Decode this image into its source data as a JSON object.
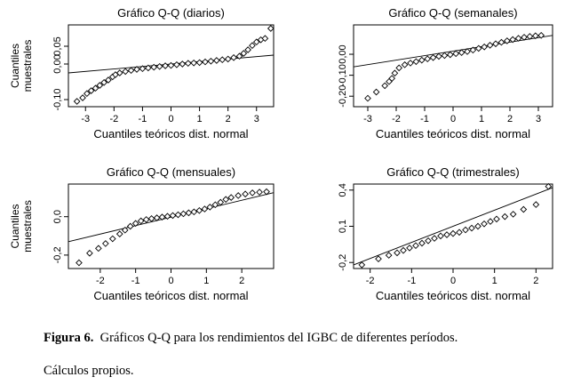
{
  "chart_data": [
    {
      "type": "scatter",
      "title": "Gráfico Q-Q (diarios)",
      "xlabel": "Cuantiles teóricos dist. normal",
      "ylabel": "Cuantiles muestrales",
      "xlim": [
        -3.6,
        3.6
      ],
      "ylim": [
        -0.12,
        0.11
      ],
      "xticks": [
        -3,
        -2,
        -1,
        0,
        1,
        2,
        3
      ],
      "xtick_labels": [
        "-3",
        "-2",
        "-1",
        "0",
        "1",
        "2",
        "3"
      ],
      "yticks": [
        -0.1,
        0,
        0.05
      ],
      "ytick_labels": [
        "-0,10",
        "0,00",
        "0,05"
      ],
      "reference_line": {
        "x": [
          -3.6,
          3.6
        ],
        "y": [
          -0.025,
          0.025
        ]
      },
      "points": [
        [
          -3.3,
          -0.105
        ],
        [
          -3.1,
          -0.095
        ],
        [
          -2.95,
          -0.083
        ],
        [
          -2.8,
          -0.075
        ],
        [
          -2.65,
          -0.068
        ],
        [
          -2.5,
          -0.06
        ],
        [
          -2.35,
          -0.052
        ],
        [
          -2.2,
          -0.045
        ],
        [
          -2.05,
          -0.036
        ],
        [
          -1.95,
          -0.03
        ],
        [
          -1.8,
          -0.025
        ],
        [
          -1.6,
          -0.021
        ],
        [
          -1.4,
          -0.018
        ],
        [
          -1.2,
          -0.015
        ],
        [
          -1.0,
          -0.013
        ],
        [
          -0.8,
          -0.011
        ],
        [
          -0.6,
          -0.009
        ],
        [
          -0.4,
          -0.007
        ],
        [
          -0.2,
          -0.005
        ],
        [
          0.0,
          -0.004
        ],
        [
          0.2,
          -0.002
        ],
        [
          0.4,
          0.0
        ],
        [
          0.6,
          0.002
        ],
        [
          0.8,
          0.003
        ],
        [
          1.0,
          0.004
        ],
        [
          1.2,
          0.006
        ],
        [
          1.4,
          0.008
        ],
        [
          1.6,
          0.01
        ],
        [
          1.8,
          0.012
        ],
        [
          2.0,
          0.014
        ],
        [
          2.2,
          0.018
        ],
        [
          2.4,
          0.022
        ],
        [
          2.55,
          0.03
        ],
        [
          2.7,
          0.04
        ],
        [
          2.85,
          0.052
        ],
        [
          3.0,
          0.062
        ],
        [
          3.15,
          0.068
        ],
        [
          3.3,
          0.072
        ],
        [
          3.5,
          0.1
        ]
      ]
    },
    {
      "type": "scatter",
      "title": "Gráfico Q-Q (semanales)",
      "xlabel": "Cuantiles teóricos dist. normal",
      "ylabel": "",
      "xlim": [
        -3.5,
        3.5
      ],
      "ylim": [
        -0.25,
        0.14
      ],
      "xticks": [
        -3,
        -2,
        -1,
        0,
        1,
        2,
        3
      ],
      "xtick_labels": [
        "-3",
        "-2",
        "-1",
        "0",
        "1",
        "2",
        "3"
      ],
      "yticks": [
        -0.2,
        -0.1,
        0
      ],
      "ytick_labels": [
        "-0,20",
        "-0,10",
        "0,00"
      ],
      "reference_line": {
        "x": [
          -3.5,
          3.5
        ],
        "y": [
          -0.06,
          0.09
        ]
      },
      "points": [
        [
          -3.0,
          -0.21
        ],
        [
          -2.7,
          -0.18
        ],
        [
          -2.4,
          -0.15
        ],
        [
          -2.25,
          -0.13
        ],
        [
          -2.15,
          -0.115
        ],
        [
          -2.05,
          -0.09
        ],
        [
          -1.9,
          -0.065
        ],
        [
          -1.7,
          -0.05
        ],
        [
          -1.5,
          -0.042
        ],
        [
          -1.3,
          -0.035
        ],
        [
          -1.1,
          -0.028
        ],
        [
          -0.9,
          -0.022
        ],
        [
          -0.7,
          -0.016
        ],
        [
          -0.5,
          -0.01
        ],
        [
          -0.3,
          -0.006
        ],
        [
          -0.1,
          -0.002
        ],
        [
          0.1,
          0.003
        ],
        [
          0.3,
          0.008
        ],
        [
          0.5,
          0.013
        ],
        [
          0.7,
          0.02
        ],
        [
          0.9,
          0.028
        ],
        [
          1.1,
          0.035
        ],
        [
          1.3,
          0.043
        ],
        [
          1.5,
          0.05
        ],
        [
          1.7,
          0.057
        ],
        [
          1.9,
          0.064
        ],
        [
          2.1,
          0.07
        ],
        [
          2.3,
          0.076
        ],
        [
          2.5,
          0.081
        ],
        [
          2.7,
          0.085
        ],
        [
          2.9,
          0.088
        ],
        [
          3.1,
          0.09
        ]
      ]
    },
    {
      "type": "scatter",
      "title": "Gráfico Q-Q (mensuales)",
      "xlabel": "Cuantiles teóricos dist. normal",
      "ylabel": "Cuantiles muestrales",
      "xlim": [
        -2.9,
        2.9
      ],
      "ylim": [
        -0.27,
        0.17
      ],
      "xticks": [
        -2,
        -1,
        0,
        1,
        2
      ],
      "xtick_labels": [
        "-2",
        "-1",
        "0",
        "1",
        "2"
      ],
      "yticks": [
        -0.2,
        0
      ],
      "ytick_labels": [
        "-0,2",
        "0,0"
      ],
      "reference_line": {
        "x": [
          -2.9,
          2.9
        ],
        "y": [
          -0.13,
          0.125
        ]
      },
      "points": [
        [
          -2.6,
          -0.24
        ],
        [
          -2.3,
          -0.19
        ],
        [
          -2.05,
          -0.165
        ],
        [
          -1.85,
          -0.14
        ],
        [
          -1.65,
          -0.115
        ],
        [
          -1.45,
          -0.09
        ],
        [
          -1.3,
          -0.07
        ],
        [
          -1.15,
          -0.05
        ],
        [
          -1.0,
          -0.035
        ],
        [
          -0.85,
          -0.022
        ],
        [
          -0.7,
          -0.015
        ],
        [
          -0.55,
          -0.01
        ],
        [
          -0.4,
          -0.006
        ],
        [
          -0.25,
          -0.002
        ],
        [
          -0.1,
          0.002
        ],
        [
          0.05,
          0.006
        ],
        [
          0.2,
          0.01
        ],
        [
          0.35,
          0.015
        ],
        [
          0.5,
          0.02
        ],
        [
          0.65,
          0.025
        ],
        [
          0.8,
          0.032
        ],
        [
          0.95,
          0.04
        ],
        [
          1.1,
          0.05
        ],
        [
          1.25,
          0.062
        ],
        [
          1.4,
          0.075
        ],
        [
          1.55,
          0.09
        ],
        [
          1.7,
          0.1
        ],
        [
          1.9,
          0.11
        ],
        [
          2.1,
          0.118
        ],
        [
          2.3,
          0.124
        ],
        [
          2.5,
          0.128
        ],
        [
          2.7,
          0.13
        ]
      ]
    },
    {
      "type": "scatter",
      "title": "Gráfico Q-Q (trimestrales)",
      "xlabel": "Cuantiles teóricos dist. normal",
      "ylabel": "",
      "xlim": [
        -2.4,
        2.4
      ],
      "ylim": [
        -0.25,
        0.45
      ],
      "xticks": [
        -2,
        -1,
        0,
        1,
        2
      ],
      "xtick_labels": [
        "-2",
        "-1",
        "0",
        "1",
        "2"
      ],
      "yticks": [
        -0.2,
        0.1,
        0.4
      ],
      "ytick_labels": [
        "-0,2",
        "0,1",
        "0,4"
      ],
      "reference_line": {
        "x": [
          -2.4,
          2.4
        ],
        "y": [
          -0.22,
          0.42
        ]
      },
      "points": [
        [
          -2.2,
          -0.22
        ],
        [
          -1.8,
          -0.17
        ],
        [
          -1.55,
          -0.14
        ],
        [
          -1.35,
          -0.12
        ],
        [
          -1.2,
          -0.1
        ],
        [
          -1.05,
          -0.08
        ],
        [
          -0.9,
          -0.06
        ],
        [
          -0.75,
          -0.04
        ],
        [
          -0.6,
          -0.02
        ],
        [
          -0.45,
          0.0
        ],
        [
          -0.3,
          0.02
        ],
        [
          -0.15,
          0.03
        ],
        [
          0.0,
          0.04
        ],
        [
          0.15,
          0.05
        ],
        [
          0.3,
          0.07
        ],
        [
          0.45,
          0.085
        ],
        [
          0.6,
          0.1
        ],
        [
          0.75,
          0.12
        ],
        [
          0.9,
          0.14
        ],
        [
          1.05,
          0.16
        ],
        [
          1.25,
          0.18
        ],
        [
          1.45,
          0.2
        ],
        [
          1.7,
          0.24
        ],
        [
          2.0,
          0.28
        ],
        [
          2.3,
          0.43
        ]
      ]
    }
  ],
  "caption": {
    "label": "Figura 6.",
    "text": "Gráficos Q-Q para los rendimientos del IGBC de diferentes períodos."
  },
  "source": "Cálculos propios."
}
